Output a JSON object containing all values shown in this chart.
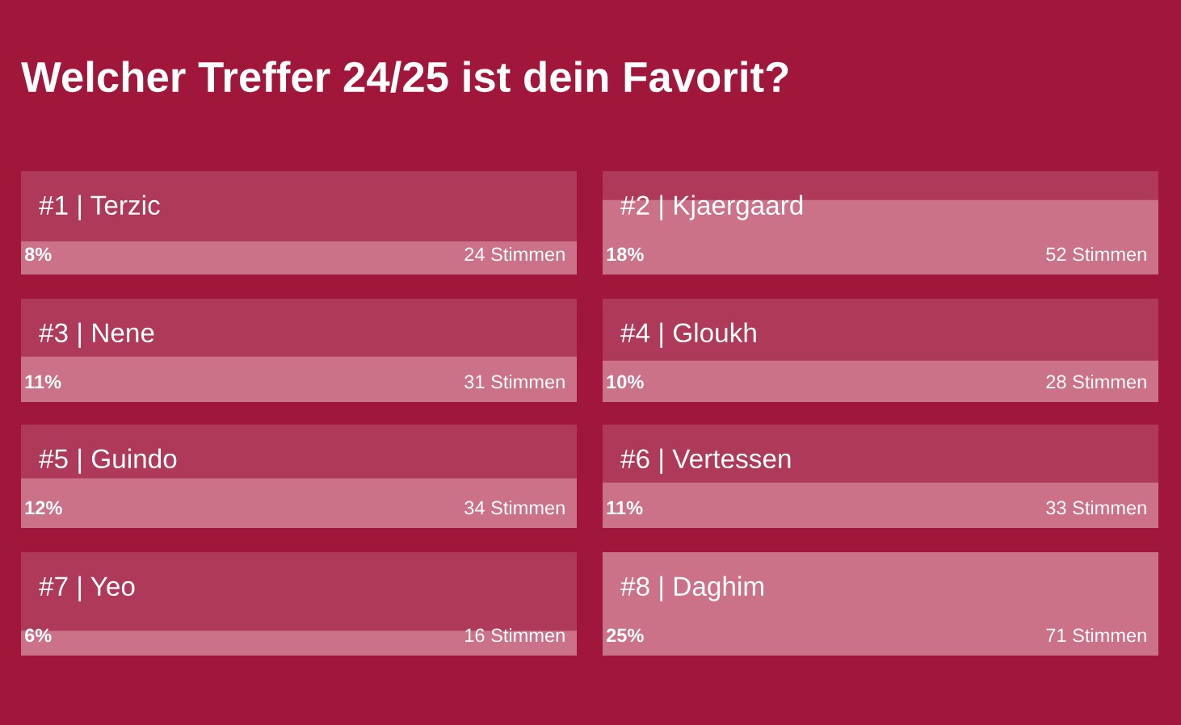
{
  "chart_data": [
    {
      "type": "other",
      "title": "Welcher Treffer 24/25 ist dein Favorit?"
    },
    {
      "type": "bar",
      "title": "#1 | Terzic",
      "categories": [
        null
      ],
      "values": [
        8
      ],
      "value_labels": [
        "8%"
      ],
      "ylim": [
        0,
        25
      ],
      "tick_labels": false,
      "color": "#e3a3b2",
      "annotations": [
        "24 Stimmen"
      ]
    },
    {
      "type": "bar",
      "title": "#2 | Kjaergaard",
      "categories": [
        null
      ],
      "values": [
        18
      ],
      "value_labels": [
        "18%"
      ],
      "ylim": [
        0,
        25
      ],
      "tick_labels": false,
      "color": "#e3a3b2",
      "annotations": [
        "52 Stimmen"
      ]
    },
    {
      "type": "bar",
      "title": "#3 | Nene",
      "categories": [
        null
      ],
      "values": [
        11
      ],
      "value_labels": [
        "11%"
      ],
      "ylim": [
        0,
        25
      ],
      "tick_labels": false,
      "color": "#e3a3b2",
      "annotations": [
        "31 Stimmen"
      ]
    },
    {
      "type": "bar",
      "title": "#4 | Gloukh",
      "categories": [
        null
      ],
      "values": [
        10
      ],
      "value_labels": [
        "10%"
      ],
      "ylim": [
        0,
        25
      ],
      "tick_labels": false,
      "color": "#e3a3b2",
      "annotations": [
        "28 Stimmen"
      ]
    },
    {
      "type": "bar",
      "title": "#5 | Guindo",
      "categories": [
        null
      ],
      "values": [
        12
      ],
      "value_labels": [
        "12%"
      ],
      "ylim": [
        0,
        25
      ],
      "tick_labels": false,
      "color": "#e3a3b2",
      "annotations": [
        "34 Stimmen"
      ]
    },
    {
      "type": "bar",
      "title": "#6 | Vertessen",
      "categories": [
        null
      ],
      "values": [
        11
      ],
      "value_labels": [
        "11%"
      ],
      "ylim": [
        0,
        25
      ],
      "tick_labels": false,
      "color": "#e3a3b2",
      "annotations": [
        "33 Stimmen"
      ]
    },
    {
      "type": "bar",
      "title": "#7 | Yeo",
      "categories": [
        null
      ],
      "values": [
        6
      ],
      "value_labels": [
        "6%"
      ],
      "ylim": [
        0,
        25
      ],
      "tick_labels": false,
      "color": "#e3a3b2",
      "annotations": [
        "16 Stimmen"
      ]
    },
    {
      "type": "bar",
      "title": "#8 | Daghim",
      "categories": [
        null
      ],
      "values": [
        25
      ],
      "value_labels": [
        "25%"
      ],
      "ylim": [
        0,
        25
      ],
      "tick_labels": false,
      "color": "#e3a3b2",
      "annotations": [
        "71 Stimmen"
      ]
    }
  ]
}
